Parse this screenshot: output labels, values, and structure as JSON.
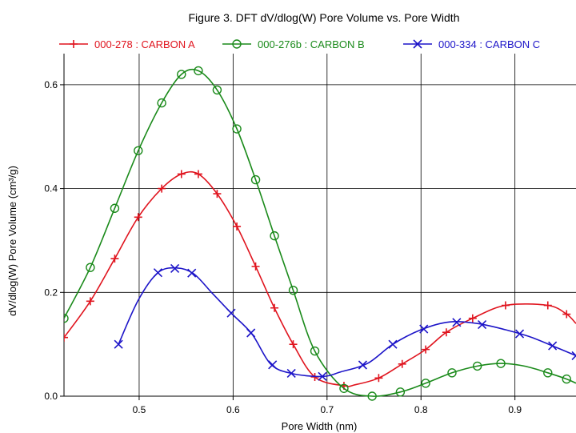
{
  "chart_data": {
    "type": "line",
    "title": "Figure 3. DFT dV/dlog(W) Pore Volume vs. Pore Width",
    "xlabel": "Pore Width (nm)",
    "ylabel": "dV/dlog(W) Pore Volume (cm³/g)",
    "xlim": [
      0.42,
      0.965
    ],
    "ylim": [
      0.0,
      0.66
    ],
    "xticks": [
      "0.5",
      "0.6",
      "0.7",
      "0.8",
      "0.9"
    ],
    "yticks": [
      "0.0",
      "0.2",
      "0.4",
      "0.6"
    ],
    "grid": true,
    "legend_position": "top",
    "series": [
      {
        "name": "000-278 : CARBON A",
        "color": "#e0141e",
        "marker": "plus",
        "x": [
          0.42,
          0.448,
          0.474,
          0.499,
          0.524,
          0.545,
          0.563,
          0.583,
          0.604,
          0.624,
          0.644,
          0.664,
          0.687,
          0.718,
          0.73,
          0.755,
          0.78,
          0.805,
          0.827,
          0.855,
          0.89,
          0.935,
          0.955,
          0.965
        ],
        "y": [
          0.113,
          0.183,
          0.265,
          0.345,
          0.4,
          0.428,
          0.428,
          0.39,
          0.327,
          0.25,
          0.17,
          0.1,
          0.037,
          0.02,
          0.022,
          0.035,
          0.062,
          0.09,
          0.123,
          0.15,
          0.175,
          0.175,
          0.158,
          0.14
        ],
        "markers": [
          0.42,
          0.448,
          0.474,
          0.499,
          0.524,
          0.545,
          0.563,
          0.583,
          0.604,
          0.624,
          0.644,
          0.664,
          0.687,
          0.718,
          0.755,
          0.78,
          0.805,
          0.827,
          0.855,
          0.89,
          0.935,
          0.955
        ]
      },
      {
        "name": "000-276b : CARBON B",
        "color": "#1a8a1a",
        "marker": "circle",
        "x": [
          0.42,
          0.448,
          0.474,
          0.499,
          0.524,
          0.545,
          0.563,
          0.583,
          0.604,
          0.624,
          0.644,
          0.664,
          0.687,
          0.718,
          0.748,
          0.778,
          0.805,
          0.833,
          0.86,
          0.885,
          0.91,
          0.935,
          0.955,
          0.965
        ],
        "y": [
          0.15,
          0.248,
          0.362,
          0.473,
          0.565,
          0.62,
          0.627,
          0.59,
          0.515,
          0.417,
          0.309,
          0.204,
          0.087,
          0.015,
          0.0,
          0.008,
          0.025,
          0.045,
          0.058,
          0.063,
          0.058,
          0.045,
          0.033,
          0.025
        ],
        "markers": [
          0.42,
          0.448,
          0.474,
          0.499,
          0.524,
          0.545,
          0.563,
          0.583,
          0.604,
          0.624,
          0.644,
          0.664,
          0.687,
          0.718,
          0.748,
          0.778,
          0.805,
          0.833,
          0.86,
          0.885,
          0.935,
          0.955
        ]
      },
      {
        "name": "000-334 : CARBON C",
        "color": "#1c14c8",
        "marker": "x",
        "x": [
          0.478,
          0.499,
          0.52,
          0.54,
          0.558,
          0.578,
          0.598,
          0.62,
          0.64,
          0.662,
          0.695,
          0.715,
          0.743,
          0.77,
          0.8,
          0.83,
          0.86,
          0.89,
          0.915,
          0.94,
          0.965
        ],
        "y": [
          0.1,
          0.185,
          0.238,
          0.247,
          0.236,
          0.198,
          0.16,
          0.12,
          0.062,
          0.044,
          0.038,
          0.047,
          0.063,
          0.1,
          0.128,
          0.143,
          0.14,
          0.128,
          0.115,
          0.097,
          0.078
        ],
        "markers": [
          0.478,
          0.52,
          0.538,
          0.556,
          0.598,
          0.619,
          0.642,
          0.662,
          0.695,
          0.738,
          0.77,
          0.803,
          0.838,
          0.865,
          0.905,
          0.94,
          0.965
        ]
      }
    ]
  }
}
